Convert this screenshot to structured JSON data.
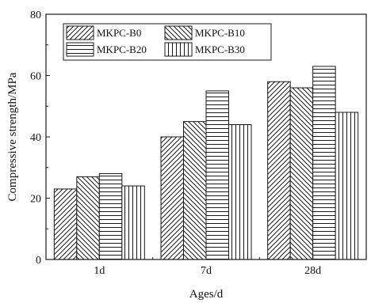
{
  "chart_data": {
    "type": "bar",
    "title": "",
    "xlabel": "Ages/d",
    "ylabel": "Compressive strength/MPa",
    "categories": [
      "1d",
      "7d",
      "28d"
    ],
    "ylim": [
      0,
      80
    ],
    "yticks": [
      0,
      20,
      40,
      60,
      80
    ],
    "grid": false,
    "legend_position": "top-left",
    "series": [
      {
        "name": "MKPC-B0",
        "pattern": "diagonal-forward",
        "values": [
          23,
          40,
          58
        ]
      },
      {
        "name": "MKPC-B10",
        "pattern": "diagonal-backward",
        "values": [
          27,
          45,
          56
        ]
      },
      {
        "name": "MKPC-B20",
        "pattern": "horizontal",
        "values": [
          28,
          55,
          63
        ]
      },
      {
        "name": "MKPC-B30",
        "pattern": "vertical",
        "values": [
          24,
          44,
          48
        ]
      }
    ]
  },
  "colors": {
    "stroke": "#1a1a1a",
    "fill": "#ffffff"
  }
}
